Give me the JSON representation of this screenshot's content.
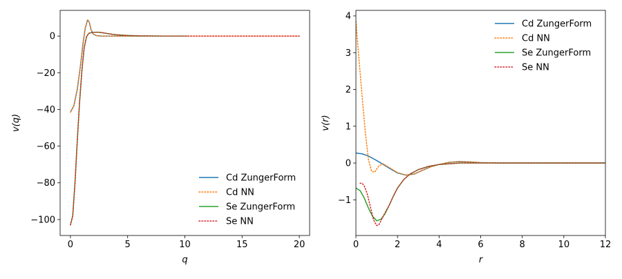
{
  "colors": {
    "cd_zunger": "#1f77b4",
    "cd_nn": "#ff7f0e",
    "se_zunger": "#2ca02c",
    "se_nn": "#d62728"
  },
  "chart_data": [
    {
      "type": "line",
      "xlabel": "q",
      "ylabel": "v(q)",
      "xlim": [
        -0.9,
        20.9
      ],
      "ylim": [
        -108.7,
        14.0
      ],
      "xticks": [
        0,
        5,
        10,
        15,
        20
      ],
      "yticks": [
        0,
        -20,
        -40,
        -60,
        -80,
        -100
      ],
      "legend_position": "lower-right",
      "series": [
        {
          "name": "Cd ZungerForm",
          "color_key": "cd_zunger",
          "style": "solid",
          "x": [
            0,
            0.3,
            0.6,
            0.9,
            1.1,
            1.3,
            1.5,
            1.65,
            1.8,
            2.0,
            2.3,
            2.7,
            3.0,
            4.0,
            6.0,
            8.0,
            10.2
          ],
          "y": [
            -41.5,
            -38,
            -29,
            -15,
            -4,
            4.5,
            8.8,
            7.5,
            3.5,
            1.0,
            0.2,
            0.0,
            0.0,
            0.0,
            0.0,
            0.0,
            0.0
          ]
        },
        {
          "name": "Cd NN",
          "color_key": "cd_nn",
          "style": "dotted",
          "x": [
            0,
            0.3,
            0.6,
            0.9,
            1.1,
            1.3,
            1.5,
            1.65,
            1.8,
            2.0,
            2.3,
            2.7,
            3.0,
            4.0,
            6.0,
            8.0,
            10.0,
            15.0,
            20.0
          ],
          "y": [
            -41.5,
            -38,
            -29,
            -15,
            -4,
            4.5,
            8.8,
            7.5,
            3.5,
            1.0,
            0.2,
            0.0,
            0.0,
            0.0,
            0.0,
            0.0,
            0.0,
            0.0,
            0.0
          ]
        },
        {
          "name": "Se ZungerForm",
          "color_key": "se_zunger",
          "style": "solid",
          "x": [
            0,
            0.2,
            0.4,
            0.6,
            0.8,
            1.0,
            1.2,
            1.4,
            1.6,
            1.8,
            2.0,
            2.3,
            2.6,
            3.0,
            3.5,
            4.0,
            5.0,
            6.0,
            8.0,
            10.2
          ],
          "y": [
            -103,
            -98,
            -80,
            -57,
            -36,
            -19,
            -6.5,
            -0.5,
            1.5,
            1.8,
            2.0,
            2.1,
            2.0,
            1.6,
            1.1,
            0.7,
            0.3,
            0.1,
            0.0,
            0.0
          ]
        },
        {
          "name": "Se NN",
          "color_key": "se_nn",
          "style": "dotted",
          "x": [
            0,
            0.2,
            0.4,
            0.6,
            0.8,
            1.0,
            1.2,
            1.4,
            1.6,
            1.8,
            2.0,
            2.3,
            2.6,
            3.0,
            3.5,
            4.0,
            5.0,
            6.0,
            8.0,
            10.0,
            15.0,
            20.0
          ],
          "y": [
            -103,
            -98,
            -80,
            -57,
            -36,
            -19,
            -6.5,
            -0.5,
            1.5,
            1.8,
            2.0,
            2.1,
            2.0,
            1.6,
            1.1,
            0.7,
            0.3,
            0.1,
            0.0,
            0.0,
            0.0,
            0.0
          ]
        }
      ]
    },
    {
      "type": "line",
      "xlabel": "r",
      "ylabel": "v(r)",
      "xlim": [
        0,
        12
      ],
      "ylim": [
        -1.97,
        4.15
      ],
      "xticks": [
        0,
        2,
        4,
        6,
        8,
        10,
        12
      ],
      "yticks": [
        4,
        3,
        2,
        1,
        0,
        -1
      ],
      "legend_position": "upper-right",
      "series": [
        {
          "name": "Cd ZungerForm",
          "color_key": "cd_zunger",
          "style": "solid",
          "x": [
            0,
            0.3,
            0.6,
            0.9,
            1.2,
            1.6,
            2.0,
            2.4,
            2.8,
            3.2,
            3.6,
            4.0,
            4.5,
            5.0,
            5.5,
            6.0,
            7.0,
            8.0,
            10.0,
            12.0
          ],
          "y": [
            0.27,
            0.25,
            0.19,
            0.1,
            0.0,
            -0.14,
            -0.27,
            -0.33,
            -0.3,
            -0.2,
            -0.1,
            -0.04,
            0.02,
            0.04,
            0.03,
            0.01,
            0.0,
            0.0,
            0.0,
            0.0
          ]
        },
        {
          "name": "Cd NN",
          "color_key": "cd_nn",
          "style": "dotted",
          "x": [
            0,
            0.15,
            0.3,
            0.45,
            0.6,
            0.75,
            0.9,
            1.1,
            1.3,
            1.6,
            2.0,
            2.4,
            2.8,
            3.2,
            3.6,
            4.0,
            4.5,
            5.0,
            5.5,
            6.0,
            7.0,
            8.0,
            10.0,
            12.0
          ],
          "y": [
            3.85,
            2.8,
            1.8,
            0.85,
            0.1,
            -0.22,
            -0.25,
            -0.08,
            -0.02,
            -0.12,
            -0.26,
            -0.33,
            -0.3,
            -0.2,
            -0.1,
            -0.04,
            0.02,
            0.04,
            0.03,
            0.01,
            0.0,
            0.0,
            0.0,
            0.0
          ]
        },
        {
          "name": "Se ZungerForm",
          "color_key": "se_zunger",
          "style": "solid",
          "x": [
            0,
            0.2,
            0.4,
            0.6,
            0.8,
            1.0,
            1.2,
            1.4,
            1.6,
            1.8,
            2.0,
            2.3,
            2.6,
            3.0,
            3.5,
            4.0,
            4.5,
            5.0,
            6.0,
            8.0,
            10.0,
            12.0
          ],
          "y": [
            -0.68,
            -0.75,
            -0.95,
            -1.22,
            -1.45,
            -1.57,
            -1.53,
            -1.38,
            -1.15,
            -0.9,
            -0.68,
            -0.45,
            -0.3,
            -0.18,
            -0.09,
            -0.04,
            -0.02,
            0.0,
            0.0,
            0.0,
            0.0,
            0.0
          ]
        },
        {
          "name": "Se NN",
          "color_key": "se_nn",
          "style": "dotted",
          "x": [
            0.2,
            0.3,
            0.4,
            0.55,
            0.7,
            0.85,
            1.0,
            1.1,
            1.25,
            1.4,
            1.6,
            1.8,
            2.0,
            2.3,
            2.6,
            3.0,
            3.5,
            4.0,
            4.5,
            5.0,
            6.0,
            8.0,
            10.0,
            12.0
          ],
          "y": [
            -0.55,
            -0.55,
            -0.62,
            -0.85,
            -1.2,
            -1.55,
            -1.7,
            -1.68,
            -1.52,
            -1.35,
            -1.15,
            -0.9,
            -0.68,
            -0.45,
            -0.3,
            -0.18,
            -0.09,
            -0.04,
            -0.02,
            0.0,
            0.0,
            0.0,
            0.0,
            0.0
          ]
        }
      ]
    }
  ]
}
